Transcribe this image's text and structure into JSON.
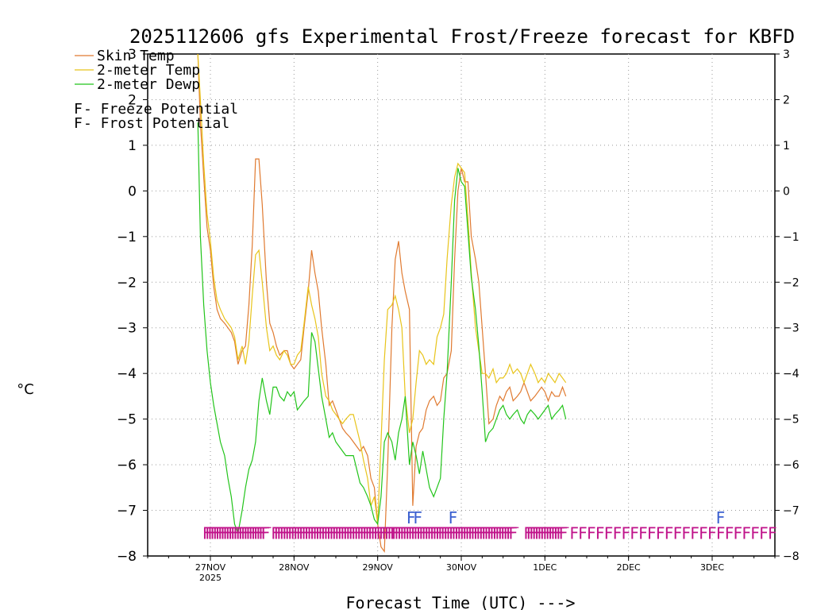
{
  "chart_data": {
    "type": "line",
    "title": "2025112606 gfs Experimental Frost/Freeze forecast for KBFD",
    "ylabel": "°C",
    "xlabel": "Forecast Time (UTC) --->",
    "ylim": [
      -8,
      3
    ],
    "yticks": [
      -8,
      -7,
      -6,
      -5,
      -4,
      -3,
      -2,
      -1,
      0,
      1,
      2,
      3
    ],
    "xlim": [
      -0.75,
      6.75
    ],
    "xticks": [
      {
        "value": 0,
        "label": "27NOV",
        "sublabel": "2025"
      },
      {
        "value": 1,
        "label": "28NOV",
        "sublabel": ""
      },
      {
        "value": 2,
        "label": "29NOV",
        "sublabel": ""
      },
      {
        "value": 3,
        "label": "30NOV",
        "sublabel": ""
      },
      {
        "value": 4,
        "label": "1DEC",
        "sublabel": ""
      },
      {
        "value": 5,
        "label": "2DEC",
        "sublabel": ""
      },
      {
        "value": 6,
        "label": "3DEC",
        "sublabel": ""
      }
    ],
    "grid": true,
    "legend": {
      "position": "top-left",
      "items": [
        {
          "label": "Skin Temp",
          "color": "#e07a30"
        },
        {
          "label": "2-meter Temp",
          "color": "#e8c41a"
        },
        {
          "label": "2-meter Dewp",
          "color": "#22c41a"
        }
      ],
      "notes": [
        {
          "prefix": "F",
          "text": " - Freeze Potential",
          "color": "#c0138a"
        },
        {
          "prefix": "F",
          "text": " - Frost Potential",
          "color": "#3a5fd0"
        }
      ]
    },
    "series": [
      {
        "name": "Skin Temp",
        "color": "#e07a30",
        "x": [
          -0.15,
          -0.12,
          -0.08,
          -0.04,
          0.0,
          0.04,
          0.08,
          0.12,
          0.17,
          0.21,
          0.25,
          0.29,
          0.33,
          0.38,
          0.42,
          0.46,
          0.5,
          0.54,
          0.58,
          0.62,
          0.67,
          0.71,
          0.75,
          0.79,
          0.83,
          0.88,
          0.92,
          0.96,
          1.0,
          1.04,
          1.08,
          1.12,
          1.17,
          1.21,
          1.25,
          1.29,
          1.33,
          1.38,
          1.42,
          1.46,
          1.5,
          1.54,
          1.58,
          1.62,
          1.67,
          1.71,
          1.75,
          1.79,
          1.83,
          1.88,
          1.92,
          1.96,
          2.0,
          2.04,
          2.08,
          2.12,
          2.17,
          2.21,
          2.25,
          2.29,
          2.33,
          2.38,
          2.42,
          2.46,
          2.5,
          2.54,
          2.58,
          2.62,
          2.67,
          2.71,
          2.75,
          2.79,
          2.83,
          2.88,
          2.92,
          2.96,
          3.0,
          3.04,
          3.08,
          3.12,
          3.17,
          3.21,
          3.25,
          3.29,
          3.33,
          3.38,
          3.42,
          3.46,
          3.5,
          3.54,
          3.58,
          3.62,
          3.67,
          3.71,
          3.75,
          3.79,
          3.83,
          3.88,
          3.92,
          3.96,
          4.0,
          4.04,
          4.08,
          4.12,
          4.17,
          4.21,
          4.25
        ],
        "y": [
          3.0,
          1.5,
          0.3,
          -0.8,
          -1.3,
          -2.1,
          -2.6,
          -2.8,
          -2.9,
          -3.0,
          -3.1,
          -3.3,
          -3.8,
          -3.5,
          -3.4,
          -2.5,
          -1.2,
          0.7,
          0.7,
          -0.3,
          -2.0,
          -2.9,
          -3.1,
          -3.4,
          -3.6,
          -3.5,
          -3.5,
          -3.8,
          -3.9,
          -3.8,
          -3.7,
          -3.0,
          -2.2,
          -1.3,
          -1.8,
          -2.2,
          -3.0,
          -3.8,
          -4.7,
          -4.6,
          -4.8,
          -5.0,
          -5.2,
          -5.3,
          -5.4,
          -5.5,
          -5.6,
          -5.7,
          -5.6,
          -5.8,
          -6.3,
          -6.5,
          -7.3,
          -7.8,
          -7.9,
          -6.0,
          -3.0,
          -1.5,
          -1.1,
          -1.8,
          -2.2,
          -2.6,
          -6.9,
          -5.6,
          -5.3,
          -5.2,
          -4.8,
          -4.6,
          -4.5,
          -4.7,
          -4.6,
          -4.1,
          -4.0,
          -3.5,
          -1.5,
          0.0,
          0.5,
          0.2,
          0.2,
          -1.0,
          -1.5,
          -2.0,
          -3.0,
          -4.0,
          -5.1,
          -5.0,
          -4.7,
          -4.5,
          -4.6,
          -4.4,
          -4.3,
          -4.6,
          -4.5,
          -4.4,
          -4.2,
          -4.4,
          -4.6,
          -4.5,
          -4.4,
          -4.3,
          -4.4,
          -4.6,
          -4.4,
          -4.5,
          -4.5,
          -4.3,
          -4.5
        ]
      },
      {
        "name": "2-meter Temp",
        "color": "#e8c41a",
        "x": [
          -0.15,
          -0.12,
          -0.08,
          -0.04,
          0.0,
          0.04,
          0.08,
          0.12,
          0.17,
          0.21,
          0.25,
          0.29,
          0.33,
          0.38,
          0.42,
          0.46,
          0.5,
          0.54,
          0.58,
          0.62,
          0.67,
          0.71,
          0.75,
          0.79,
          0.83,
          0.88,
          0.92,
          0.96,
          1.0,
          1.04,
          1.08,
          1.12,
          1.17,
          1.21,
          1.25,
          1.29,
          1.33,
          1.38,
          1.42,
          1.46,
          1.5,
          1.54,
          1.58,
          1.62,
          1.67,
          1.71,
          1.75,
          1.79,
          1.83,
          1.88,
          1.92,
          1.96,
          2.0,
          2.04,
          2.08,
          2.12,
          2.17,
          2.21,
          2.25,
          2.29,
          2.33,
          2.38,
          2.42,
          2.46,
          2.5,
          2.54,
          2.58,
          2.62,
          2.67,
          2.71,
          2.75,
          2.79,
          2.83,
          2.88,
          2.92,
          2.96,
          3.0,
          3.04,
          3.08,
          3.12,
          3.17,
          3.21,
          3.25,
          3.29,
          3.33,
          3.38,
          3.42,
          3.46,
          3.5,
          3.54,
          3.58,
          3.62,
          3.67,
          3.71,
          3.75,
          3.79,
          3.83,
          3.88,
          3.92,
          3.96,
          4.0,
          4.04,
          4.08,
          4.12,
          4.17,
          4.21,
          4.25
        ],
        "y": [
          3.0,
          2.0,
          0.6,
          -0.5,
          -1.1,
          -1.9,
          -2.4,
          -2.6,
          -2.8,
          -2.9,
          -3.0,
          -3.2,
          -3.7,
          -3.4,
          -3.8,
          -3.3,
          -2.3,
          -1.4,
          -1.3,
          -2.0,
          -3.0,
          -3.5,
          -3.4,
          -3.6,
          -3.7,
          -3.5,
          -3.6,
          -3.8,
          -3.8,
          -3.6,
          -3.5,
          -2.9,
          -2.1,
          -2.5,
          -2.8,
          -3.2,
          -4.0,
          -4.5,
          -4.6,
          -4.8,
          -4.9,
          -5.0,
          -5.1,
          -5.0,
          -4.9,
          -4.9,
          -5.2,
          -5.5,
          -5.9,
          -6.3,
          -6.9,
          -6.7,
          -7.3,
          -5.5,
          -3.7,
          -2.6,
          -2.5,
          -2.3,
          -2.6,
          -3.0,
          -4.5,
          -5.3,
          -5.0,
          -4.2,
          -3.5,
          -3.6,
          -3.8,
          -3.7,
          -3.8,
          -3.2,
          -3.0,
          -2.7,
          -1.5,
          -0.3,
          0.3,
          0.6,
          0.5,
          0.4,
          -0.6,
          -1.8,
          -3.0,
          -3.5,
          -4.0,
          -4.0,
          -4.1,
          -3.9,
          -4.2,
          -4.1,
          -4.1,
          -4.0,
          -3.8,
          -4.0,
          -3.9,
          -4.0,
          -4.2,
          -4.0,
          -3.8,
          -4.0,
          -4.2,
          -4.1,
          -4.2,
          -4.0,
          -4.1,
          -4.2,
          -4.0,
          -4.1,
          -4.2
        ]
      },
      {
        "name": "2-meter Dewp",
        "color": "#22c41a",
        "x": [
          -0.15,
          -0.12,
          -0.08,
          -0.04,
          0.0,
          0.04,
          0.08,
          0.12,
          0.17,
          0.21,
          0.25,
          0.29,
          0.33,
          0.38,
          0.42,
          0.46,
          0.5,
          0.54,
          0.58,
          0.62,
          0.67,
          0.71,
          0.75,
          0.79,
          0.83,
          0.88,
          0.92,
          0.96,
          1.0,
          1.04,
          1.08,
          1.12,
          1.17,
          1.21,
          1.25,
          1.29,
          1.33,
          1.38,
          1.42,
          1.46,
          1.5,
          1.54,
          1.58,
          1.62,
          1.67,
          1.71,
          1.75,
          1.79,
          1.83,
          1.88,
          1.92,
          1.96,
          2.0,
          2.04,
          2.08,
          2.12,
          2.17,
          2.21,
          2.25,
          2.29,
          2.33,
          2.38,
          2.42,
          2.46,
          2.5,
          2.54,
          2.58,
          2.62,
          2.67,
          2.71,
          2.75,
          2.79,
          2.83,
          2.88,
          2.92,
          2.96,
          3.0,
          3.04,
          3.08,
          3.12,
          3.17,
          3.21,
          3.25,
          3.29,
          3.33,
          3.38,
          3.42,
          3.46,
          3.5,
          3.54,
          3.58,
          3.62,
          3.67,
          3.71,
          3.75,
          3.79,
          3.83,
          3.88,
          3.92,
          3.96,
          4.0,
          4.04,
          4.08,
          4.12,
          4.17,
          4.21,
          4.25
        ],
        "y": [
          1.5,
          -1.0,
          -2.5,
          -3.5,
          -4.2,
          -4.7,
          -5.1,
          -5.5,
          -5.8,
          -6.3,
          -6.7,
          -7.3,
          -7.5,
          -7.0,
          -6.5,
          -6.1,
          -5.9,
          -5.5,
          -4.6,
          -4.1,
          -4.6,
          -4.9,
          -4.3,
          -4.3,
          -4.5,
          -4.6,
          -4.4,
          -4.5,
          -4.4,
          -4.8,
          -4.7,
          -4.6,
          -4.5,
          -3.1,
          -3.3,
          -3.9,
          -4.5,
          -5.0,
          -5.4,
          -5.3,
          -5.5,
          -5.6,
          -5.7,
          -5.8,
          -5.8,
          -5.8,
          -6.1,
          -6.4,
          -6.5,
          -6.7,
          -6.9,
          -7.2,
          -7.3,
          -6.7,
          -5.5,
          -5.3,
          -5.5,
          -5.9,
          -5.3,
          -5.0,
          -4.5,
          -6.0,
          -5.5,
          -5.8,
          -6.2,
          -5.7,
          -6.1,
          -6.5,
          -6.7,
          -6.5,
          -6.3,
          -5.0,
          -4.0,
          -2.0,
          -0.2,
          0.5,
          0.2,
          0.1,
          -0.9,
          -1.9,
          -2.6,
          -3.4,
          -4.4,
          -5.5,
          -5.3,
          -5.2,
          -5.0,
          -4.8,
          -4.7,
          -4.9,
          -5.0,
          -4.9,
          -4.8,
          -5.0,
          -5.1,
          -4.9,
          -4.8,
          -4.9,
          -5.0,
          -4.9,
          -4.8,
          -4.7,
          -5.0,
          -4.9,
          -4.8,
          -4.7,
          -5.0
        ]
      }
    ],
    "freeze_flags": {
      "label": "F",
      "color": "#c0138a",
      "y": -7.5,
      "groups": [
        {
          "start": -0.04,
          "end": 0.66,
          "count": 24
        },
        {
          "start": 0.78,
          "end": 2.2,
          "count": 44
        },
        {
          "start": 2.22,
          "end": 3.62,
          "count": 44
        },
        {
          "start": 3.8,
          "end": 4.22,
          "count": 14
        }
      ],
      "spaced_start": 4.35,
      "spaced_end": 6.72,
      "spaced_count": 24
    },
    "frost_flags": {
      "label": "F",
      "color": "#3a5fd0",
      "y": -7.15,
      "x": [
        2.4,
        2.48,
        2.9,
        6.1
      ]
    }
  }
}
